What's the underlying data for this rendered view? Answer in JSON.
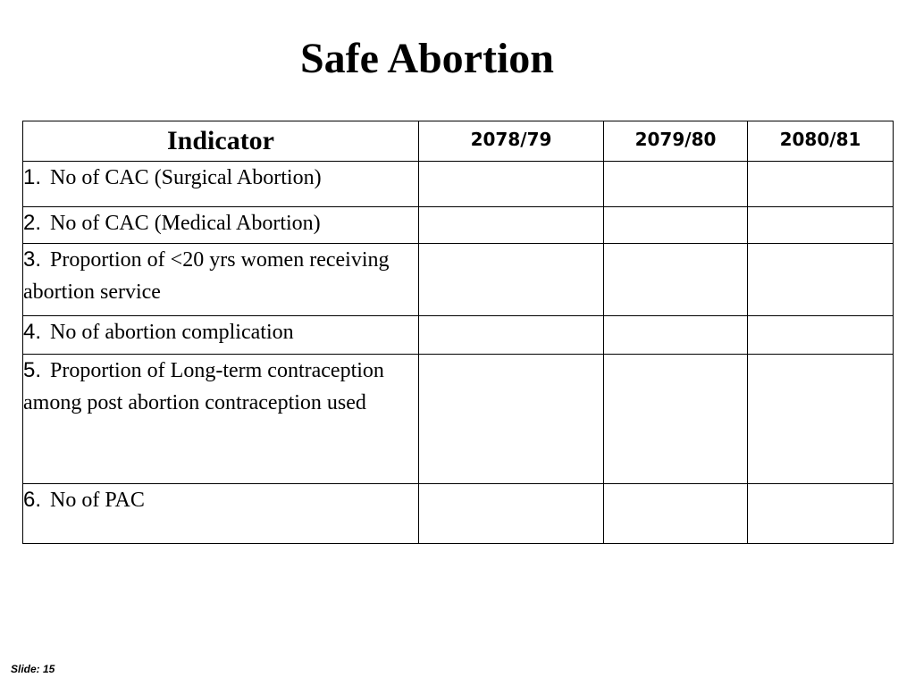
{
  "slide": {
    "title": "Safe Abortion",
    "footer": "Slide: 15"
  },
  "table": {
    "headers": [
      "Indicator",
      "2078/79",
      "2079/80",
      "2080/81"
    ],
    "rows": [
      {
        "num": "1.",
        "label": "No of CAC (Surgical Abortion)",
        "values": [
          "",
          "",
          ""
        ]
      },
      {
        "num": "2.",
        "label": "No of CAC (Medical Abortion)",
        "values": [
          "",
          "",
          ""
        ]
      },
      {
        "num": "3.",
        "label": "Proportion of <20 yrs women receiving abortion service",
        "values": [
          "",
          "",
          ""
        ]
      },
      {
        "num": "4.",
        "label": "No of abortion complication",
        "values": [
          "",
          "",
          ""
        ]
      },
      {
        "num": "5.",
        "label": "Proportion of Long-term contraception among post abortion contraception used",
        "values": [
          "",
          "",
          ""
        ]
      },
      {
        "num": "6.",
        "label": "No of PAC",
        "values": [
          "",
          "",
          ""
        ]
      }
    ]
  }
}
